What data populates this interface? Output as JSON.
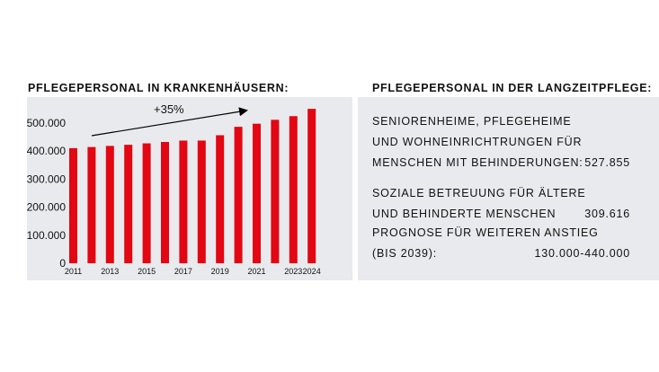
{
  "left": {
    "heading": "Pflegepersonal in Krankenhäusern:"
  },
  "right": {
    "heading": "Pflegepersonal in der Langzeitpflege:",
    "groups": [
      {
        "lines": [
          "Seniorenheime, Pflegeheime",
          "und Wohneinrichtrungen für",
          "Menschen mit Behinderungen:"
        ],
        "value": "527.855"
      },
      {
        "lines": [
          "Soziale Betreuung für Ältere",
          "und behinderte Menschen"
        ],
        "value": "309.616"
      },
      {
        "lines": [
          "Prognose für weiteren Anstieg",
          "(bis 2039):"
        ],
        "value": "130.000-440.000"
      }
    ]
  },
  "colors": {
    "bar": "#e30613",
    "panel": "#e8eaed",
    "arrow": "#000000"
  },
  "chart_data": {
    "type": "bar",
    "categories": [
      "2011",
      "2012",
      "2013",
      "2014",
      "2015",
      "2016",
      "2017",
      "2018",
      "2019",
      "2020",
      "2021",
      "2022",
      "2023",
      "2024"
    ],
    "x_tick_labels": [
      "2011",
      "",
      "2013",
      "",
      "2015",
      "",
      "2017",
      "",
      "2019",
      "",
      "2021",
      "",
      "2023",
      "2024"
    ],
    "values": [
      410000,
      414000,
      418000,
      422000,
      427000,
      432000,
      437000,
      437000,
      456000,
      486000,
      497000,
      511000,
      524000,
      550000
    ],
    "ylim": [
      0,
      560000
    ],
    "y_ticks": [
      0,
      100000,
      200000,
      300000,
      400000,
      500000
    ],
    "y_tick_labels": [
      "0",
      "100.000",
      "200.000",
      "300.000",
      "400.000",
      "500.000"
    ],
    "annotation": "+35%",
    "grid": false
  }
}
